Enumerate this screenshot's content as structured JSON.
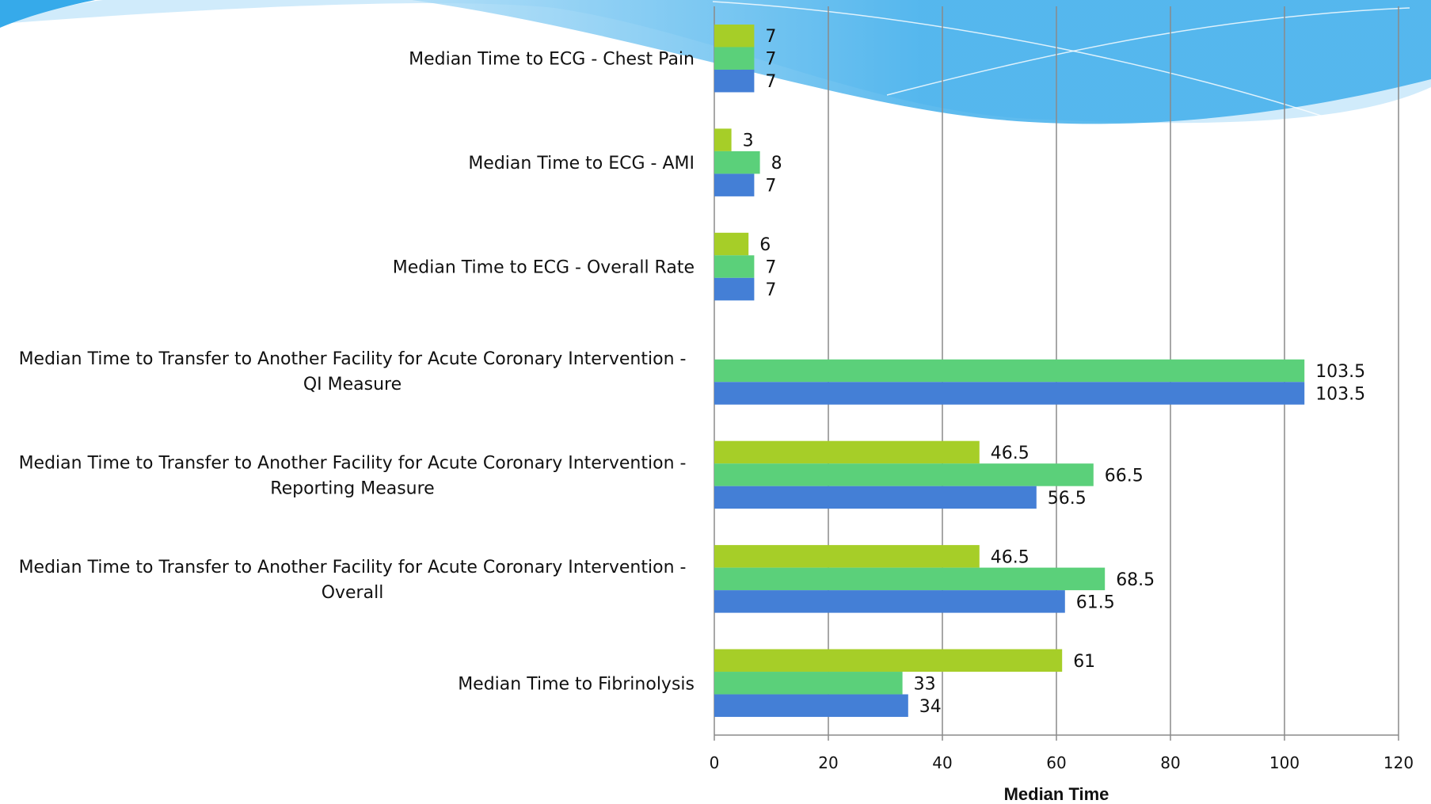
{
  "colors": {
    "series_a": "#A6CE28",
    "series_b": "#5BD07A",
    "series_c": "#447FD6",
    "gridline": "#8a8a8a",
    "wave_dark": "#36AAEA",
    "wave_light": "#A9DBF7"
  },
  "chart_data": {
    "type": "bar",
    "orientation": "horizontal",
    "title": "",
    "xlabel": "Median Time",
    "ylabel": "",
    "xlim": [
      0,
      120
    ],
    "x_ticks": [
      "0",
      "20",
      "40",
      "60",
      "80",
      "100",
      "120"
    ],
    "grid": "vertical",
    "legend": "none",
    "categories": [
      [
        "Median Time to ECG - Chest Pain"
      ],
      [
        "Median Time to ECG - AMI"
      ],
      [
        "Median Time to ECG - Overall Rate"
      ],
      [
        "Median Time to Transfer to Another Facility for Acute Coronary Intervention -",
        "QI Measure"
      ],
      [
        "Median Time to Transfer to Another Facility for Acute Coronary Intervention -",
        "Reporting Measure"
      ],
      [
        "Median Time to Transfer to Another Facility for Acute Coronary Intervention -",
        "Overall"
      ],
      [
        "Median Time to Fibrinolysis"
      ]
    ],
    "series": [
      {
        "color": "#A6CE28",
        "values": [
          7,
          3,
          6,
          null,
          46.5,
          46.5,
          61
        ],
        "labels": [
          "7",
          "3",
          "6",
          "",
          "46.5",
          "46.5",
          "61"
        ]
      },
      {
        "color": "#5BD07A",
        "values": [
          7,
          8,
          7,
          103.5,
          66.5,
          68.5,
          33
        ],
        "labels": [
          "7",
          "8",
          "7",
          "103.5",
          "66.5",
          "68.5",
          "33"
        ]
      },
      {
        "color": "#447FD6",
        "values": [
          7,
          7,
          7,
          103.5,
          56.5,
          61.5,
          34
        ],
        "labels": [
          "7",
          "7",
          "7",
          "103.5",
          "56.5",
          "61.5",
          "34"
        ]
      }
    ]
  }
}
